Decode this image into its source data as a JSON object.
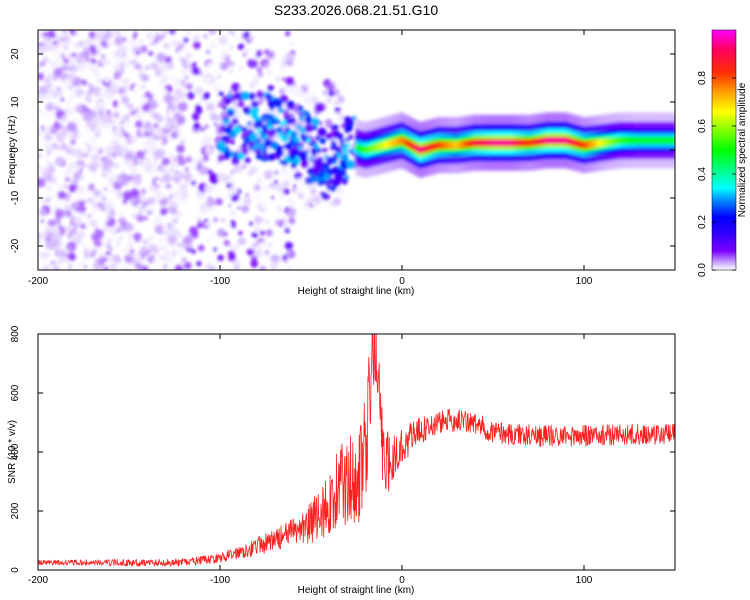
{
  "figure": {
    "title": "S233.2026.068.21.51.G10"
  },
  "chart_data": [
    {
      "type": "heatmap",
      "xlabel": "Height of straight line (km)",
      "ylabel": "Frequency (Hz)",
      "xlim": [
        -200,
        150
      ],
      "ylim": [
        -25,
        25
      ],
      "x_ticks": [
        -200,
        -100,
        0,
        100
      ],
      "y_ticks": [
        -20,
        -10,
        0,
        10,
        20
      ],
      "colorbar": {
        "label": "Normalized spectral amplitude",
        "range": [
          0.0,
          1.0
        ],
        "ticks": [
          0.0,
          0.2,
          0.4,
          0.6,
          0.8
        ],
        "colors": [
          "#ffffff",
          "#c9a8ff",
          "#7a00ff",
          "#3300ff",
          "#0000ff",
          "#00a0ff",
          "#00ffff",
          "#00ff80",
          "#00ff00",
          "#80ff00",
          "#ffff00",
          "#ffa000",
          "#ff3000",
          "#ff0060",
          "#ff00ff"
        ]
      },
      "ridge": {
        "x": [
          -70,
          -60,
          -50,
          -40,
          -30,
          -20,
          -10,
          0,
          10,
          20,
          30,
          40,
          50,
          60,
          70,
          80,
          90,
          100,
          110,
          120,
          130,
          140,
          150
        ],
        "frequency": [
          5,
          3,
          0,
          -4,
          1,
          0,
          1,
          2,
          0,
          1,
          1,
          1.5,
          1.5,
          1.5,
          1.5,
          2,
          2,
          1,
          1.5,
          2,
          2,
          2,
          2
        ],
        "amplitude": [
          0.35,
          0.35,
          0.4,
          0.45,
          0.5,
          0.6,
          0.7,
          0.8,
          0.95,
          0.85,
          0.75,
          0.9,
          0.95,
          0.95,
          0.85,
          0.95,
          0.95,
          0.85,
          0.7,
          0.6,
          0.55,
          0.55,
          0.55
        ]
      }
    },
    {
      "type": "line",
      "xlabel": "Height of straight line (km)",
      "ylabel": "SNR (10 * v/v)",
      "xlim": [
        -200,
        150
      ],
      "ylim": [
        0,
        800
      ],
      "x_ticks": [
        -200,
        -100,
        0,
        100
      ],
      "y_ticks": [
        0,
        200,
        400,
        600,
        800
      ],
      "color": "#ff2020",
      "envelope": {
        "x": [
          -200,
          -180,
          -160,
          -140,
          -120,
          -100,
          -90,
          -80,
          -70,
          -60,
          -50,
          -40,
          -35,
          -30,
          -25,
          -20,
          -17,
          -15,
          -10,
          -5,
          0,
          5,
          10,
          20,
          30,
          40,
          50,
          60,
          80,
          100,
          120,
          150
        ],
        "y": [
          25,
          25,
          25,
          25,
          25,
          40,
          60,
          80,
          100,
          130,
          160,
          220,
          280,
          300,
          330,
          380,
          650,
          800,
          350,
          380,
          420,
          450,
          470,
          500,
          510,
          495,
          470,
          460,
          455,
          455,
          460,
          460
        ]
      },
      "noise_amplitude": {
        "x": [
          -200,
          -100,
          -60,
          -40,
          -20,
          -10,
          0,
          20,
          150
        ],
        "y": [
          8,
          15,
          45,
          110,
          200,
          120,
          60,
          40,
          35
        ]
      }
    }
  ]
}
